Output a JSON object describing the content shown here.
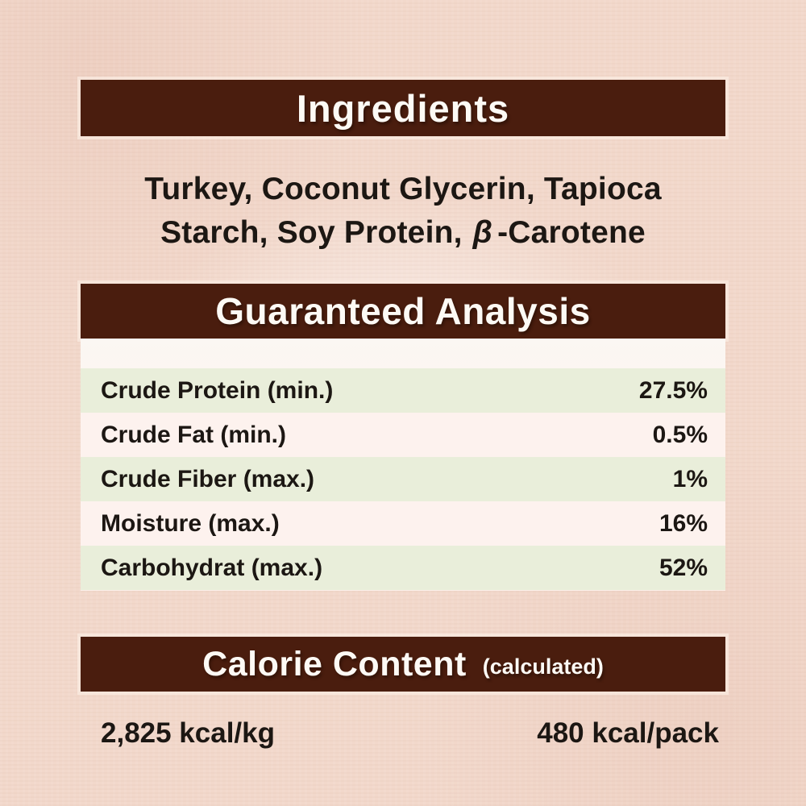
{
  "colors": {
    "background": "#f2d8cb",
    "bar": "#4a1d0e",
    "stripe": "#e9eeda",
    "row_light": "#fdf2ee",
    "text_dark": "#1c1713",
    "text_light": "#fdfaf5"
  },
  "ingredients": {
    "header": "Ingredients",
    "line1": "Turkey, Coconut Glycerin, Tapioca",
    "line2_prefix": "Starch, Soy Protein,",
    "beta": "β",
    "line2_suffix": "-Carotene"
  },
  "guaranteed_analysis": {
    "header": "Guaranteed Analysis",
    "rows": [
      {
        "label": "Crude Protein (min.)",
        "value": "27.5%"
      },
      {
        "label": "Crude Fat (min.)",
        "value": "0.5%"
      },
      {
        "label": "Crude Fiber (max.)",
        "value": "1%"
      },
      {
        "label": "Moisture (max.)",
        "value": "16%"
      },
      {
        "label": "Carbohydrat (max.)",
        "value": "52%"
      }
    ]
  },
  "calorie": {
    "header": "Calorie Content",
    "note": "(calculated)",
    "per_kg": "2,825 kcal/kg",
    "per_pack": "480 kcal/pack"
  }
}
